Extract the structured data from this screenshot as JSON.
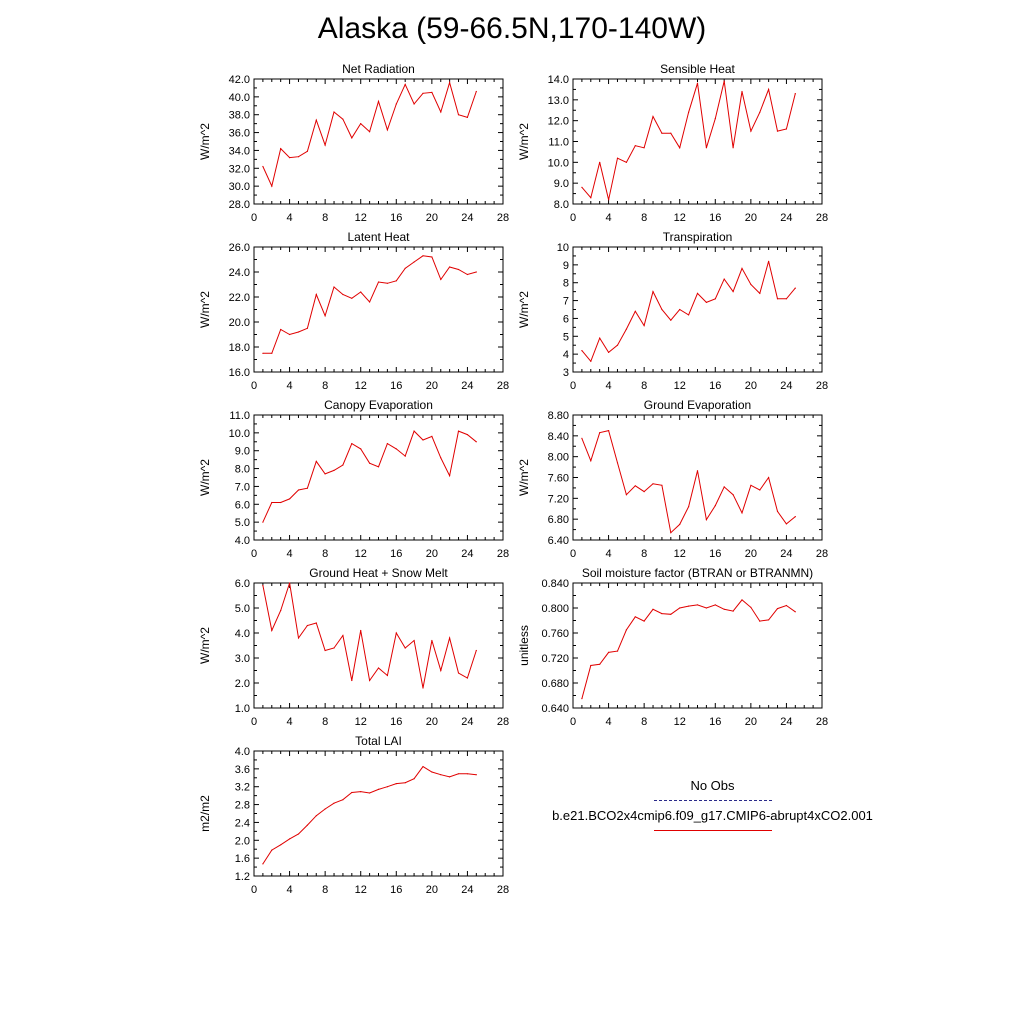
{
  "title": "Alaska (59-66.5N,170-140W)",
  "legend": {
    "obs_label": "No Obs",
    "obs_color": "#2a2a8a",
    "case_label": "b.e21.BCO2x4cmip6.f09_g17.CMIP6-abrupt4xCO2.001",
    "case_color": "#e00000"
  },
  "chart_data": [
    {
      "type": "line",
      "title": "Net Radiation",
      "ylabel": "W/m^2",
      "xlim": [
        0,
        28
      ],
      "x_ticks": [
        "0",
        "4",
        "8",
        "12",
        "16",
        "20",
        "24",
        "28"
      ],
      "ylim": [
        28,
        42
      ],
      "y_ticks": [
        "28.0",
        "30.0",
        "32.0",
        "34.0",
        "36.0",
        "38.0",
        "40.0",
        "42.0"
      ],
      "series": [
        {
          "color": "#e00000",
          "x": [
            1,
            2,
            3,
            4,
            5,
            6,
            7,
            8,
            9,
            10,
            11,
            12,
            13,
            14,
            15,
            16,
            17,
            18,
            19,
            20,
            21,
            22,
            23,
            24,
            25
          ],
          "values": [
            32.2,
            30.0,
            34.2,
            33.2,
            33.3,
            33.9,
            37.4,
            34.6,
            38.3,
            37.5,
            35.4,
            37.0,
            36.1,
            39.5,
            36.3,
            39.2,
            41.4,
            39.2,
            40.4,
            40.5,
            38.3,
            41.6,
            38.0,
            37.7,
            40.6
          ]
        }
      ]
    },
    {
      "type": "line",
      "title": "Sensible Heat",
      "ylabel": "W/m^2",
      "xlim": [
        0,
        28
      ],
      "x_ticks": [
        "0",
        "4",
        "8",
        "12",
        "16",
        "20",
        "24",
        "28"
      ],
      "ylim": [
        8,
        14
      ],
      "y_ticks": [
        "8.0",
        "9.0",
        "10.0",
        "11.0",
        "12.0",
        "13.0",
        "14.0"
      ],
      "series": [
        {
          "color": "#e00000",
          "x": [
            1,
            2,
            3,
            4,
            5,
            6,
            7,
            8,
            9,
            10,
            11,
            12,
            13,
            14,
            15,
            16,
            17,
            18,
            19,
            20,
            21,
            22,
            23,
            24,
            25
          ],
          "values": [
            8.8,
            8.3,
            10.0,
            8.2,
            10.2,
            10.0,
            10.8,
            10.7,
            12.2,
            11.4,
            11.4,
            10.7,
            12.4,
            13.8,
            10.7,
            12.1,
            13.9,
            10.7,
            13.4,
            11.5,
            12.4,
            13.5,
            11.5,
            11.6,
            13.3
          ]
        }
      ]
    },
    {
      "type": "line",
      "title": "Latent Heat",
      "ylabel": "W/m^2",
      "xlim": [
        0,
        28
      ],
      "x_ticks": [
        "0",
        "4",
        "8",
        "12",
        "16",
        "20",
        "24",
        "28"
      ],
      "ylim": [
        16,
        26
      ],
      "y_ticks": [
        "16.0",
        "18.0",
        "20.0",
        "22.0",
        "24.0",
        "26.0"
      ],
      "series": [
        {
          "color": "#e00000",
          "x": [
            1,
            2,
            3,
            4,
            5,
            6,
            7,
            8,
            9,
            10,
            11,
            12,
            13,
            14,
            15,
            16,
            17,
            18,
            19,
            20,
            21,
            22,
            23,
            24,
            25
          ],
          "values": [
            17.5,
            17.5,
            19.4,
            19.0,
            19.2,
            19.5,
            22.2,
            20.5,
            22.8,
            22.2,
            21.9,
            22.4,
            21.6,
            23.2,
            23.1,
            23.3,
            24.3,
            24.8,
            25.3,
            25.2,
            23.4,
            24.4,
            24.2,
            23.8,
            24.0
          ]
        }
      ]
    },
    {
      "type": "line",
      "title": "Transpiration",
      "ylabel": "W/m^2",
      "xlim": [
        0,
        28
      ],
      "x_ticks": [
        "0",
        "4",
        "8",
        "12",
        "16",
        "20",
        "24",
        "28"
      ],
      "ylim": [
        3,
        10
      ],
      "y_ticks": [
        "3",
        "4",
        "5",
        "6",
        "7",
        "8",
        "9",
        "10"
      ],
      "series": [
        {
          "color": "#e00000",
          "x": [
            1,
            2,
            3,
            4,
            5,
            6,
            7,
            8,
            9,
            10,
            11,
            12,
            13,
            14,
            15,
            16,
            17,
            18,
            19,
            20,
            21,
            22,
            23,
            24,
            25
          ],
          "values": [
            4.2,
            3.6,
            4.9,
            4.1,
            4.5,
            5.4,
            6.4,
            5.6,
            7.5,
            6.5,
            5.9,
            6.5,
            6.2,
            7.4,
            6.9,
            7.1,
            8.2,
            7.5,
            8.8,
            7.9,
            7.4,
            9.2,
            7.1,
            7.1,
            7.7
          ]
        }
      ]
    },
    {
      "type": "line",
      "title": "Canopy Evaporation",
      "ylabel": "W/m^2",
      "xlim": [
        0,
        28
      ],
      "x_ticks": [
        "0",
        "4",
        "8",
        "12",
        "16",
        "20",
        "24",
        "28"
      ],
      "ylim": [
        4,
        11
      ],
      "y_ticks": [
        "4.0",
        "5.0",
        "6.0",
        "7.0",
        "8.0",
        "9.0",
        "10.0",
        "11.0"
      ],
      "series": [
        {
          "color": "#e00000",
          "x": [
            1,
            2,
            3,
            4,
            5,
            6,
            7,
            8,
            9,
            10,
            11,
            12,
            13,
            14,
            15,
            16,
            17,
            18,
            19,
            20,
            21,
            22,
            23,
            24,
            25
          ],
          "values": [
            5.0,
            6.1,
            6.1,
            6.3,
            6.8,
            6.9,
            8.4,
            7.7,
            7.9,
            8.2,
            9.4,
            9.1,
            8.3,
            8.1,
            9.4,
            9.1,
            8.7,
            10.1,
            9.6,
            9.8,
            8.6,
            7.6,
            10.1,
            9.9,
            9.5
          ]
        }
      ]
    },
    {
      "type": "line",
      "title": "Ground Evaporation",
      "ylabel": "W/m^2",
      "xlim": [
        0,
        28
      ],
      "x_ticks": [
        "0",
        "4",
        "8",
        "12",
        "16",
        "20",
        "24",
        "28"
      ],
      "ylim": [
        6.4,
        8.8
      ],
      "y_ticks": [
        "6.40",
        "6.80",
        "7.20",
        "7.60",
        "8.00",
        "8.40",
        "8.80"
      ],
      "series": [
        {
          "color": "#e00000",
          "x": [
            1,
            2,
            3,
            4,
            5,
            6,
            7,
            8,
            9,
            10,
            11,
            12,
            13,
            14,
            15,
            16,
            17,
            18,
            19,
            20,
            21,
            22,
            23,
            24,
            25
          ],
          "values": [
            8.35,
            7.92,
            8.46,
            8.5,
            7.88,
            7.27,
            7.44,
            7.33,
            7.48,
            7.45,
            6.54,
            6.7,
            7.04,
            7.73,
            6.79,
            7.06,
            7.42,
            7.27,
            6.92,
            7.45,
            7.36,
            7.6,
            6.95,
            6.71,
            6.85
          ]
        }
      ]
    },
    {
      "type": "line",
      "title": "Ground Heat + Snow Melt",
      "ylabel": "W/m^2",
      "xlim": [
        0,
        28
      ],
      "x_ticks": [
        "0",
        "4",
        "8",
        "12",
        "16",
        "20",
        "24",
        "28"
      ],
      "ylim": [
        1,
        6
      ],
      "y_ticks": [
        "1.0",
        "2.0",
        "3.0",
        "4.0",
        "5.0",
        "6.0"
      ],
      "series": [
        {
          "color": "#e00000",
          "x": [
            1,
            2,
            3,
            4,
            5,
            6,
            7,
            8,
            9,
            10,
            11,
            12,
            13,
            14,
            15,
            16,
            17,
            18,
            19,
            20,
            21,
            22,
            23,
            24,
            25
          ],
          "values": [
            5.9,
            4.1,
            4.9,
            6.0,
            3.8,
            4.3,
            4.4,
            3.3,
            3.4,
            3.9,
            2.1,
            4.1,
            2.1,
            2.6,
            2.3,
            4.0,
            3.4,
            3.7,
            1.8,
            3.7,
            2.5,
            3.8,
            2.4,
            2.2,
            3.3
          ]
        }
      ]
    },
    {
      "type": "line",
      "title": "Soil moisture factor (BTRAN or BTRANMN)",
      "ylabel": "unitless",
      "xlim": [
        0,
        28
      ],
      "x_ticks": [
        "0",
        "4",
        "8",
        "12",
        "16",
        "20",
        "24",
        "28"
      ],
      "ylim": [
        0.64,
        0.84
      ],
      "y_ticks": [
        "0.640",
        "0.680",
        "0.720",
        "0.760",
        "0.800",
        "0.840"
      ],
      "series": [
        {
          "color": "#e00000",
          "x": [
            1,
            2,
            3,
            4,
            5,
            6,
            7,
            8,
            9,
            10,
            11,
            12,
            13,
            14,
            15,
            16,
            17,
            18,
            19,
            20,
            21,
            22,
            23,
            24,
            25
          ],
          "values": [
            0.655,
            0.708,
            0.71,
            0.729,
            0.731,
            0.765,
            0.786,
            0.779,
            0.798,
            0.791,
            0.79,
            0.8,
            0.803,
            0.805,
            0.8,
            0.805,
            0.798,
            0.795,
            0.813,
            0.801,
            0.779,
            0.781,
            0.799,
            0.804,
            0.794
          ]
        }
      ]
    },
    {
      "type": "line",
      "title": "Total LAI",
      "ylabel": "m2/m2",
      "xlim": [
        0,
        28
      ],
      "x_ticks": [
        "0",
        "4",
        "8",
        "12",
        "16",
        "20",
        "24",
        "28"
      ],
      "ylim": [
        1.2,
        4.0
      ],
      "y_ticks": [
        "1.2",
        "1.6",
        "2.0",
        "2.4",
        "2.8",
        "3.2",
        "3.6",
        "4.0"
      ],
      "series": [
        {
          "color": "#e00000",
          "x": [
            1,
            2,
            3,
            4,
            5,
            6,
            7,
            8,
            9,
            10,
            11,
            12,
            13,
            14,
            15,
            16,
            17,
            18,
            19,
            20,
            21,
            22,
            23,
            24,
            25
          ],
          "values": [
            1.47,
            1.78,
            1.9,
            2.03,
            2.14,
            2.34,
            2.55,
            2.7,
            2.83,
            2.91,
            3.07,
            3.09,
            3.06,
            3.14,
            3.2,
            3.27,
            3.29,
            3.38,
            3.65,
            3.53,
            3.47,
            3.42,
            3.49,
            3.49,
            3.47
          ]
        }
      ]
    }
  ]
}
